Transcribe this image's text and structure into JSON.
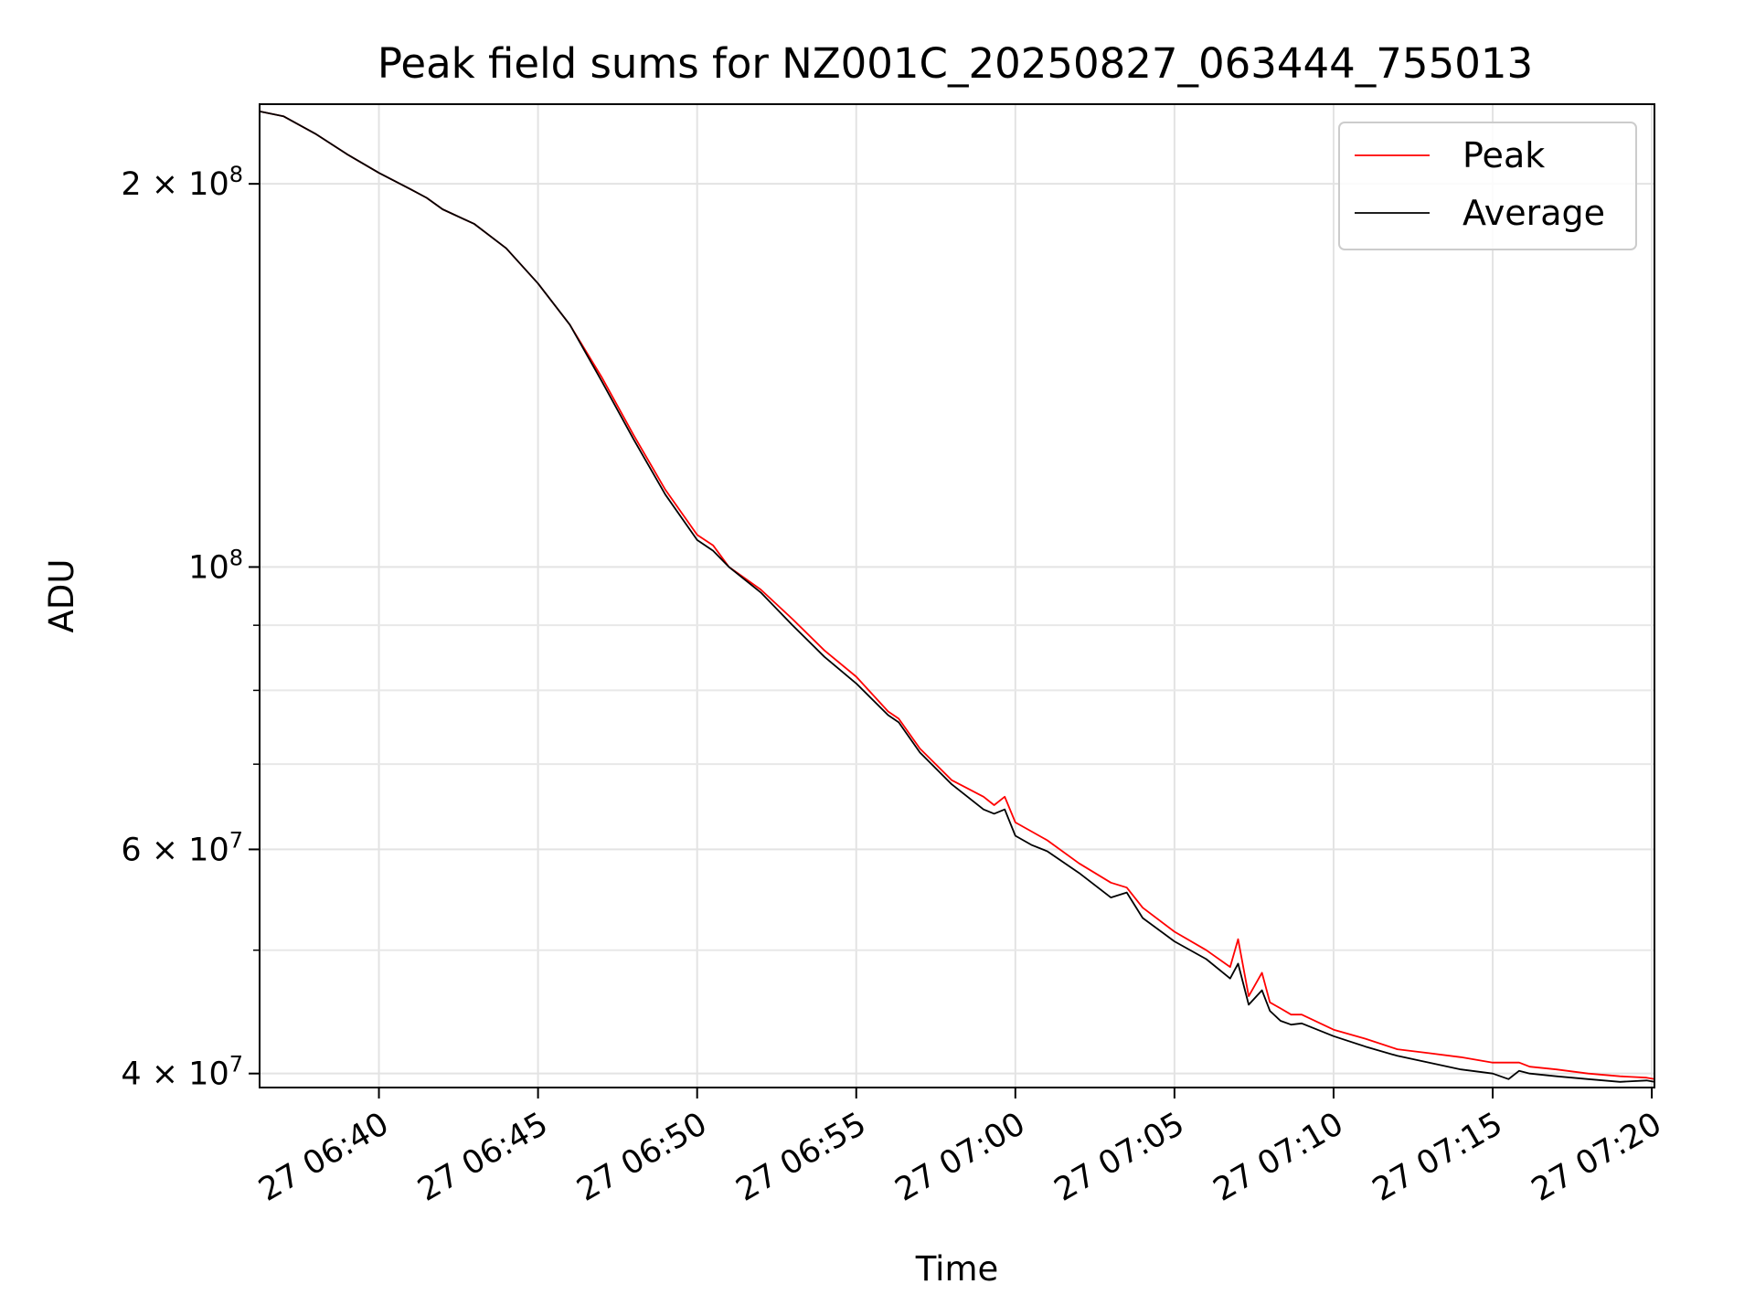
{
  "chart_data": {
    "type": "line",
    "title": "Peak field sums for NZ001C_20250827_063444_755013",
    "xlabel": "Time",
    "ylabel": "ADU",
    "x_range": [
      "2025-08-27 06:36:15",
      "2025-08-27 07:20:05"
    ],
    "ylim": [
      39000000,
      231000000
    ],
    "yscale": "log",
    "grid": true,
    "legend_position": "top-right",
    "x_ticks": [
      "27 06:40",
      "27 06:45",
      "27 06:50",
      "27 06:55",
      "27 07:00",
      "27 07:05",
      "27 07:10",
      "27 07:15",
      "27 07:20"
    ],
    "y_ticks": [
      {
        "value": 40000000,
        "label": "4 × 10⁷",
        "mantissa": "4 × 10",
        "exp": "7"
      },
      {
        "value": 60000000,
        "label": "6 × 10⁷",
        "mantissa": "6 × 10",
        "exp": "7"
      },
      {
        "value": 100000000,
        "label": "10⁸",
        "mantissa": "10",
        "exp": "8"
      },
      {
        "value": 200000000,
        "label": "2 × 10⁸",
        "mantissa": "2 × 10",
        "exp": "8"
      }
    ],
    "y_minor_ticks": [
      50000000,
      70000000,
      80000000,
      90000000
    ],
    "series": [
      {
        "name": "Peak",
        "color": "#ff0000",
        "x": [
          "06:36:15",
          "06:37:00",
          "06:38:00",
          "06:39:00",
          "06:40:00",
          "06:41:00",
          "06:41:30",
          "06:42:00",
          "06:43:00",
          "06:44:00",
          "06:45:00",
          "06:46:00",
          "06:47:00",
          "06:48:00",
          "06:49:00",
          "06:50:00",
          "06:50:30",
          "06:51:00",
          "06:52:00",
          "06:53:00",
          "06:54:00",
          "06:55:00",
          "06:56:00",
          "06:56:20",
          "06:57:00",
          "06:58:00",
          "06:59:00",
          "06:59:20",
          "06:59:40",
          "07:00:00",
          "07:00:30",
          "07:01:00",
          "07:02:00",
          "07:03:00",
          "07:03:30",
          "07:04:00",
          "07:05:00",
          "07:06:00",
          "07:06:45",
          "07:07:00",
          "07:07:20",
          "07:07:45",
          "07:08:00",
          "07:08:20",
          "07:08:40",
          "07:09:00",
          "07:10:00",
          "07:11:00",
          "07:12:00",
          "07:13:00",
          "07:14:00",
          "07:15:00",
          "07:15:30",
          "07:15:50",
          "07:16:10",
          "07:17:00",
          "07:18:00",
          "07:19:00",
          "07:19:50",
          "07:20:05"
        ],
        "values": [
          228000000,
          226000000,
          219000000,
          211000000,
          204000000,
          198000000,
          195000000,
          191000000,
          186000000,
          178000000,
          167000000,
          155000000,
          141000000,
          127000000,
          115000000,
          106000000,
          104000000,
          100000000,
          96000000,
          91000000,
          86000000,
          82000000,
          77000000,
          76000000,
          72000000,
          68000000,
          66000000,
          65000000,
          66000000,
          63000000,
          62000000,
          61000000,
          58500000,
          56500000,
          56000000,
          54000000,
          51700000,
          50000000,
          48500000,
          51000000,
          46000000,
          48000000,
          45500000,
          45000000,
          44500000,
          44500000,
          43300000,
          42600000,
          41800000,
          41500000,
          41200000,
          40800000,
          40800000,
          40800000,
          40500000,
          40300000,
          40000000,
          39800000,
          39700000,
          39600000
        ]
      },
      {
        "name": "Average",
        "color": "#000000",
        "x": [
          "06:36:15",
          "06:37:00",
          "06:38:00",
          "06:39:00",
          "06:40:00",
          "06:41:00",
          "06:41:30",
          "06:42:00",
          "06:43:00",
          "06:44:00",
          "06:45:00",
          "06:46:00",
          "06:47:00",
          "06:48:00",
          "06:49:00",
          "06:50:00",
          "06:50:30",
          "06:51:00",
          "06:52:00",
          "06:53:00",
          "06:54:00",
          "06:55:00",
          "06:56:00",
          "06:56:20",
          "06:57:00",
          "06:58:00",
          "06:59:00",
          "06:59:20",
          "06:59:40",
          "07:00:00",
          "07:00:30",
          "07:01:00",
          "07:02:00",
          "07:03:00",
          "07:03:30",
          "07:04:00",
          "07:05:00",
          "07:06:00",
          "07:06:45",
          "07:07:00",
          "07:07:20",
          "07:07:45",
          "07:08:00",
          "07:08:20",
          "07:08:40",
          "07:09:00",
          "07:10:00",
          "07:11:00",
          "07:12:00",
          "07:13:00",
          "07:14:00",
          "07:15:00",
          "07:15:30",
          "07:15:50",
          "07:16:10",
          "07:17:00",
          "07:18:00",
          "07:19:00",
          "07:19:50",
          "07:20:05"
        ],
        "values": [
          228000000,
          226000000,
          219000000,
          211000000,
          204000000,
          198000000,
          195000000,
          191000000,
          186000000,
          178000000,
          167000000,
          155000000,
          140000000,
          126000000,
          114000000,
          105000000,
          103000000,
          100000000,
          95500000,
          90000000,
          85000000,
          81000000,
          76500000,
          75500000,
          71500000,
          67500000,
          64500000,
          64000000,
          64500000,
          61500000,
          60500000,
          59800000,
          57500000,
          55000000,
          55500000,
          53000000,
          50800000,
          49200000,
          47500000,
          48800000,
          45300000,
          46500000,
          44800000,
          44000000,
          43700000,
          43800000,
          42800000,
          42000000,
          41300000,
          40800000,
          40300000,
          40000000,
          39600000,
          40200000,
          40000000,
          39800000,
          39600000,
          39400000,
          39500000,
          39400000
        ]
      }
    ]
  }
}
